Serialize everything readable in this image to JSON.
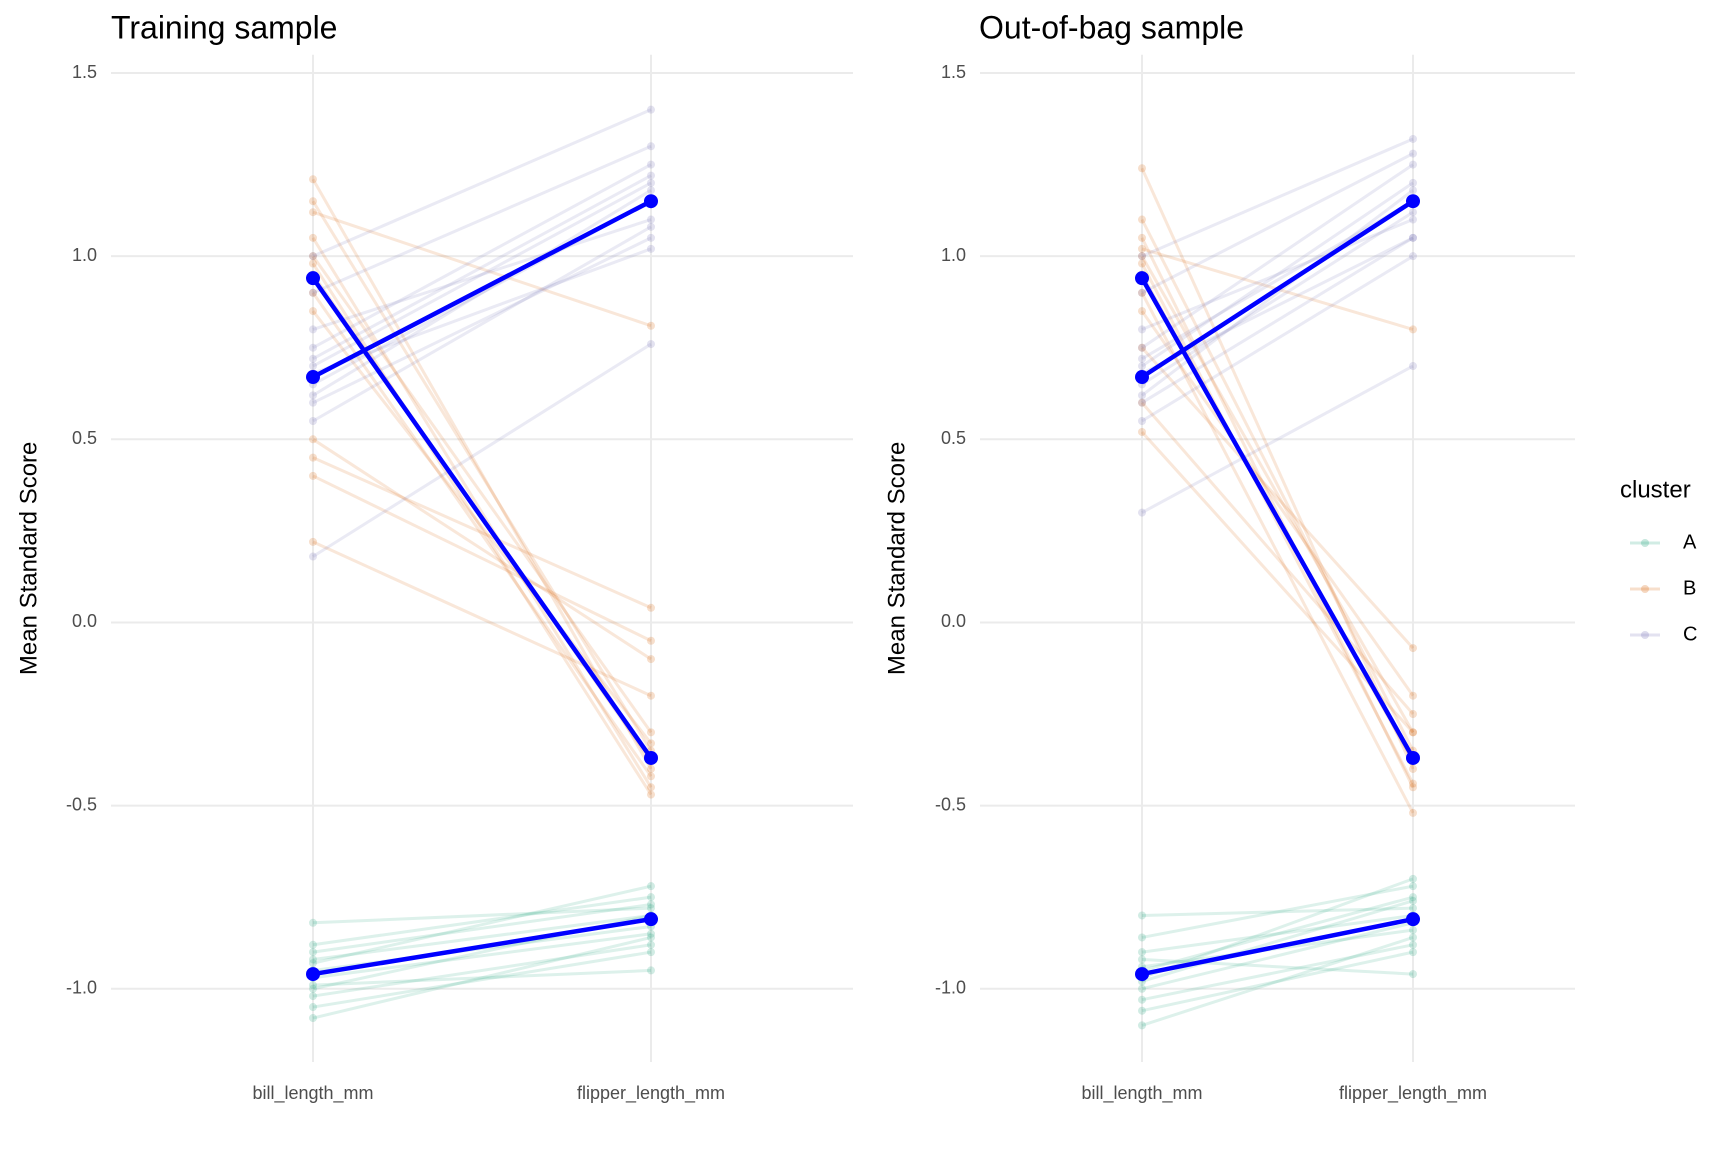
{
  "chart_data": [
    {
      "type": "line",
      "title": "Training sample",
      "ylabel": "Mean Standard Score",
      "categories": [
        "bill_length_mm",
        "flipper_length_mm"
      ],
      "ylim": [
        -1.2,
        1.55
      ],
      "yticks": [
        {
          "value": -1,
          "label": "-1.0"
        },
        -0.5,
        {
          "value": 0,
          "label": "0.0"
        },
        0.5,
        {
          "value": 1,
          "label": "1.0"
        },
        1.5
      ],
      "grid": true,
      "series": [
        {
          "name": "A",
          "color": "#1b9e77",
          "lines": [
            [
              -0.82,
              -0.78
            ],
            [
              -0.88,
              -0.75
            ],
            [
              -0.92,
              -0.8
            ],
            [
              -0.95,
              -0.83
            ],
            [
              -0.97,
              -0.85
            ],
            [
              -1.0,
              -0.8
            ],
            [
              -1.02,
              -0.88
            ],
            [
              -1.05,
              -0.9
            ],
            [
              -1.08,
              -0.86
            ],
            [
              -0.93,
              -0.72
            ],
            [
              -0.99,
              -0.95
            ],
            [
              -0.9,
              -0.77
            ]
          ]
        },
        {
          "name": "B",
          "color": "#d95f02",
          "lines": [
            [
              1.21,
              -0.4
            ],
            [
              1.15,
              -0.35
            ],
            [
              1.05,
              -0.45
            ],
            [
              1.0,
              -0.3
            ],
            [
              0.95,
              -0.38
            ],
            [
              0.9,
              -0.42
            ],
            [
              0.85,
              -0.33
            ],
            [
              0.5,
              -0.1
            ],
            [
              0.45,
              0.04
            ],
            [
              0.4,
              -0.05
            ],
            [
              0.22,
              -0.2
            ],
            [
              1.12,
              0.81
            ],
            [
              0.98,
              -0.47
            ]
          ]
        },
        {
          "name": "C",
          "color": "#7570b3",
          "lines": [
            [
              0.18,
              0.76
            ],
            [
              0.6,
              1.05
            ],
            [
              0.65,
              1.15
            ],
            [
              0.7,
              1.2
            ],
            [
              0.75,
              1.25
            ],
            [
              0.8,
              1.1
            ],
            [
              0.9,
              1.3
            ],
            [
              1.0,
              1.4
            ],
            [
              0.55,
              1.08
            ],
            [
              0.68,
              1.02
            ],
            [
              0.62,
              1.18
            ],
            [
              0.72,
              1.22
            ]
          ]
        }
      ],
      "means": [
        {
          "color": "#0000ff",
          "values": [
            -0.96,
            -0.81
          ]
        },
        {
          "color": "#0000ff",
          "values": [
            0.94,
            -0.37
          ]
        },
        {
          "color": "#0000ff",
          "values": [
            0.67,
            1.15
          ]
        }
      ]
    },
    {
      "type": "line",
      "title": "Out-of-bag sample",
      "ylabel": "Mean Standard Score",
      "categories": [
        "bill_length_mm",
        "flipper_length_mm"
      ],
      "ylim": [
        -1.2,
        1.55
      ],
      "yticks": [
        {
          "value": -1,
          "label": "-1.0"
        },
        -0.5,
        {
          "value": 0,
          "label": "0.0"
        },
        0.5,
        {
          "value": 1,
          "label": "1.0"
        },
        1.5
      ],
      "grid": true,
      "series": [
        {
          "name": "A",
          "color": "#1b9e77",
          "lines": [
            [
              -0.8,
              -0.78
            ],
            [
              -0.86,
              -0.72
            ],
            [
              -0.9,
              -0.8
            ],
            [
              -0.94,
              -0.84
            ],
            [
              -0.97,
              -0.7
            ],
            [
              -1.0,
              -0.82
            ],
            [
              -1.03,
              -0.88
            ],
            [
              -1.06,
              -0.9
            ],
            [
              -1.1,
              -0.86
            ],
            [
              -0.92,
              -0.96
            ],
            [
              -0.98,
              -0.76
            ],
            [
              -0.95,
              -0.75
            ]
          ]
        },
        {
          "name": "B",
          "color": "#d95f02",
          "lines": [
            [
              1.24,
              -0.4
            ],
            [
              1.1,
              -0.35
            ],
            [
              1.05,
              -0.45
            ],
            [
              1.0,
              -0.3
            ],
            [
              0.95,
              -0.38
            ],
            [
              0.9,
              -0.52
            ],
            [
              0.85,
              -0.2
            ],
            [
              0.75,
              -0.07
            ],
            [
              0.6,
              -0.25
            ],
            [
              0.52,
              -0.3
            ],
            [
              1.02,
              0.8
            ],
            [
              0.98,
              -0.44
            ]
          ]
        },
        {
          "name": "C",
          "color": "#7570b3",
          "lines": [
            [
              0.3,
              0.7
            ],
            [
              0.6,
              1.05
            ],
            [
              0.65,
              1.12
            ],
            [
              0.7,
              1.2
            ],
            [
              0.75,
              1.25
            ],
            [
              0.8,
              1.1
            ],
            [
              0.9,
              1.28
            ],
            [
              1.0,
              1.32
            ],
            [
              0.55,
              1.0
            ],
            [
              0.68,
              1.05
            ],
            [
              0.62,
              1.18
            ],
            [
              0.72,
              1.15
            ]
          ]
        }
      ],
      "means": [
        {
          "color": "#0000ff",
          "values": [
            -0.96,
            -0.81
          ]
        },
        {
          "color": "#0000ff",
          "values": [
            0.94,
            -0.37
          ]
        },
        {
          "color": "#0000ff",
          "values": [
            0.67,
            1.15
          ]
        }
      ]
    }
  ],
  "legend": {
    "title": "cluster",
    "position": "right"
  }
}
